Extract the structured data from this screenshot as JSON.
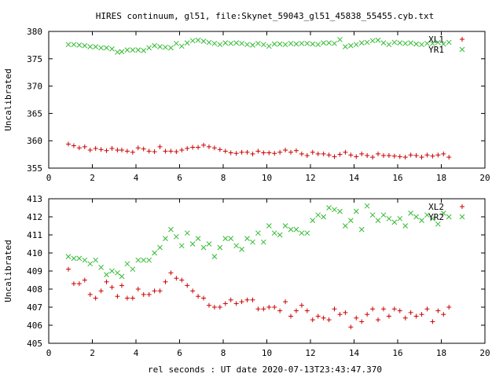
{
  "title": "HIRES continuum, gl51, file:Skynet_59043_gl51_45838_55455.cyb.txt",
  "xlabel": "rel seconds : UT date 2020-07-13T23:43:47.370",
  "colors": {
    "series1": "#cc0000",
    "series2": "#33bb33",
    "frame": "#000000"
  },
  "chart_data": [
    {
      "type": "scatter",
      "ylabel": "Uncalibrated",
      "xlim": [
        0,
        20
      ],
      "ylim": [
        355,
        380
      ],
      "xticks": [
        0,
        2,
        4,
        6,
        8,
        10,
        12,
        14,
        16,
        18,
        20
      ],
      "yticks": [
        355,
        360,
        365,
        370,
        375,
        380
      ],
      "legend_position": "top-right",
      "x": [
        0.9,
        1.15,
        1.4,
        1.65,
        1.9,
        2.15,
        2.4,
        2.65,
        2.9,
        3.15,
        3.35,
        3.6,
        3.85,
        4.1,
        4.35,
        4.6,
        4.85,
        5.1,
        5.35,
        5.6,
        5.85,
        6.1,
        6.35,
        6.6,
        6.85,
        7.1,
        7.35,
        7.6,
        7.85,
        8.1,
        8.35,
        8.6,
        8.85,
        9.1,
        9.35,
        9.6,
        9.85,
        10.1,
        10.35,
        10.6,
        10.85,
        11.1,
        11.35,
        11.6,
        11.85,
        12.1,
        12.35,
        12.6,
        12.85,
        13.1,
        13.35,
        13.6,
        13.85,
        14.1,
        14.35,
        14.6,
        14.85,
        15.1,
        15.35,
        15.6,
        15.85,
        16.1,
        16.35,
        16.6,
        16.85,
        17.1,
        17.35,
        17.6,
        17.85,
        18.1,
        18.35
      ],
      "series": [
        {
          "name": "XL1",
          "marker": "plus",
          "values": [
            359.4,
            359.1,
            358.7,
            358.9,
            358.3,
            358.6,
            358.4,
            358.2,
            358.6,
            358.3,
            358.3,
            358.1,
            357.9,
            358.7,
            358.5,
            358.1,
            358.0,
            358.9,
            358.1,
            358.1,
            358.0,
            358.3,
            358.6,
            358.8,
            358.8,
            359.2,
            358.9,
            358.7,
            358.4,
            358.1,
            357.8,
            357.7,
            357.9,
            357.9,
            357.6,
            358.1,
            357.8,
            357.8,
            357.7,
            357.9,
            358.3,
            357.9,
            358.2,
            357.6,
            357.3,
            357.9,
            357.6,
            357.6,
            357.4,
            357.1,
            357.5,
            357.9,
            357.4,
            357.1,
            357.6,
            357.3,
            357.0,
            357.6,
            357.3,
            357.3,
            357.2,
            357.1,
            357.0,
            357.4,
            357.3,
            357.0,
            357.4,
            357.2,
            357.4,
            357.6,
            357.0
          ]
        },
        {
          "name": "YR1",
          "marker": "cross",
          "values": [
            377.6,
            377.6,
            377.5,
            377.4,
            377.2,
            377.2,
            377.0,
            377.0,
            376.8,
            376.2,
            376.3,
            376.6,
            376.6,
            376.6,
            376.5,
            377.0,
            377.4,
            377.2,
            377.1,
            377.0,
            377.8,
            377.3,
            377.9,
            378.3,
            378.4,
            378.2,
            378.0,
            377.8,
            377.6,
            377.9,
            377.8,
            377.9,
            377.8,
            377.6,
            377.5,
            377.8,
            377.6,
            377.3,
            377.7,
            377.7,
            377.6,
            377.8,
            377.7,
            377.8,
            377.8,
            377.7,
            377.6,
            377.9,
            377.9,
            377.8,
            378.5,
            377.2,
            377.4,
            377.6,
            377.9,
            378.0,
            378.3,
            378.4,
            377.9,
            377.6,
            378.0,
            377.9,
            377.8,
            377.9,
            377.7,
            377.6,
            377.8,
            377.8,
            378.0,
            377.7,
            378.0
          ]
        }
      ]
    },
    {
      "type": "scatter",
      "ylabel": "Uncalibrated",
      "xlim": [
        0,
        20
      ],
      "ylim": [
        405,
        413
      ],
      "xticks": [
        0,
        2,
        4,
        6,
        8,
        10,
        12,
        14,
        16,
        18,
        20
      ],
      "yticks": [
        405,
        406,
        407,
        408,
        409,
        410,
        411,
        412,
        413
      ],
      "legend_position": "top-right",
      "x": [
        0.9,
        1.15,
        1.4,
        1.65,
        1.9,
        2.15,
        2.4,
        2.65,
        2.9,
        3.15,
        3.35,
        3.6,
        3.85,
        4.1,
        4.35,
        4.6,
        4.85,
        5.1,
        5.35,
        5.6,
        5.85,
        6.1,
        6.35,
        6.6,
        6.85,
        7.1,
        7.35,
        7.6,
        7.85,
        8.1,
        8.35,
        8.6,
        8.85,
        9.1,
        9.35,
        9.6,
        9.85,
        10.1,
        10.35,
        10.6,
        10.85,
        11.1,
        11.35,
        11.6,
        11.85,
        12.1,
        12.35,
        12.6,
        12.85,
        13.1,
        13.35,
        13.6,
        13.85,
        14.1,
        14.35,
        14.6,
        14.85,
        15.1,
        15.35,
        15.6,
        15.85,
        16.1,
        16.35,
        16.6,
        16.85,
        17.1,
        17.35,
        17.6,
        17.85,
        18.1,
        18.35
      ],
      "series": [
        {
          "name": "XL2",
          "marker": "plus",
          "values": [
            409.1,
            408.3,
            408.3,
            408.5,
            407.7,
            407.5,
            407.9,
            408.4,
            408.1,
            407.6,
            408.2,
            407.5,
            407.5,
            408.0,
            407.7,
            407.7,
            407.9,
            407.9,
            408.4,
            408.9,
            408.6,
            408.5,
            408.2,
            407.9,
            407.6,
            407.5,
            407.1,
            407.0,
            407.0,
            407.2,
            407.4,
            407.2,
            407.3,
            407.4,
            407.4,
            406.9,
            406.9,
            407.0,
            407.0,
            406.8,
            407.3,
            406.5,
            406.8,
            407.1,
            406.8,
            406.3,
            406.5,
            406.4,
            406.3,
            406.9,
            406.6,
            406.7,
            405.9,
            406.4,
            406.2,
            406.6,
            406.9,
            406.3,
            406.9,
            406.5,
            406.9,
            406.8,
            406.4,
            406.7,
            406.5,
            406.6,
            406.9,
            406.2,
            406.8,
            406.6,
            407.0
          ]
        },
        {
          "name": "YR2",
          "marker": "cross",
          "values": [
            409.8,
            409.7,
            409.7,
            409.6,
            409.4,
            409.6,
            409.2,
            408.8,
            409.0,
            408.9,
            408.7,
            409.4,
            409.1,
            409.6,
            409.6,
            409.6,
            410.0,
            410.3,
            410.8,
            411.3,
            410.9,
            410.4,
            411.1,
            410.5,
            410.8,
            410.3,
            410.5,
            409.8,
            410.3,
            410.8,
            410.8,
            410.4,
            410.2,
            410.8,
            410.6,
            411.1,
            410.6,
            411.5,
            411.1,
            411.0,
            411.5,
            411.3,
            411.3,
            411.1,
            411.1,
            411.8,
            412.1,
            412.0,
            412.5,
            412.4,
            412.3,
            411.5,
            411.8,
            412.3,
            411.3,
            412.6,
            412.1,
            411.8,
            412.1,
            411.9,
            411.7,
            411.9,
            411.5,
            412.2,
            412.0,
            411.8,
            412.1,
            411.9,
            411.6,
            412.2,
            412.0
          ]
        }
      ]
    }
  ]
}
